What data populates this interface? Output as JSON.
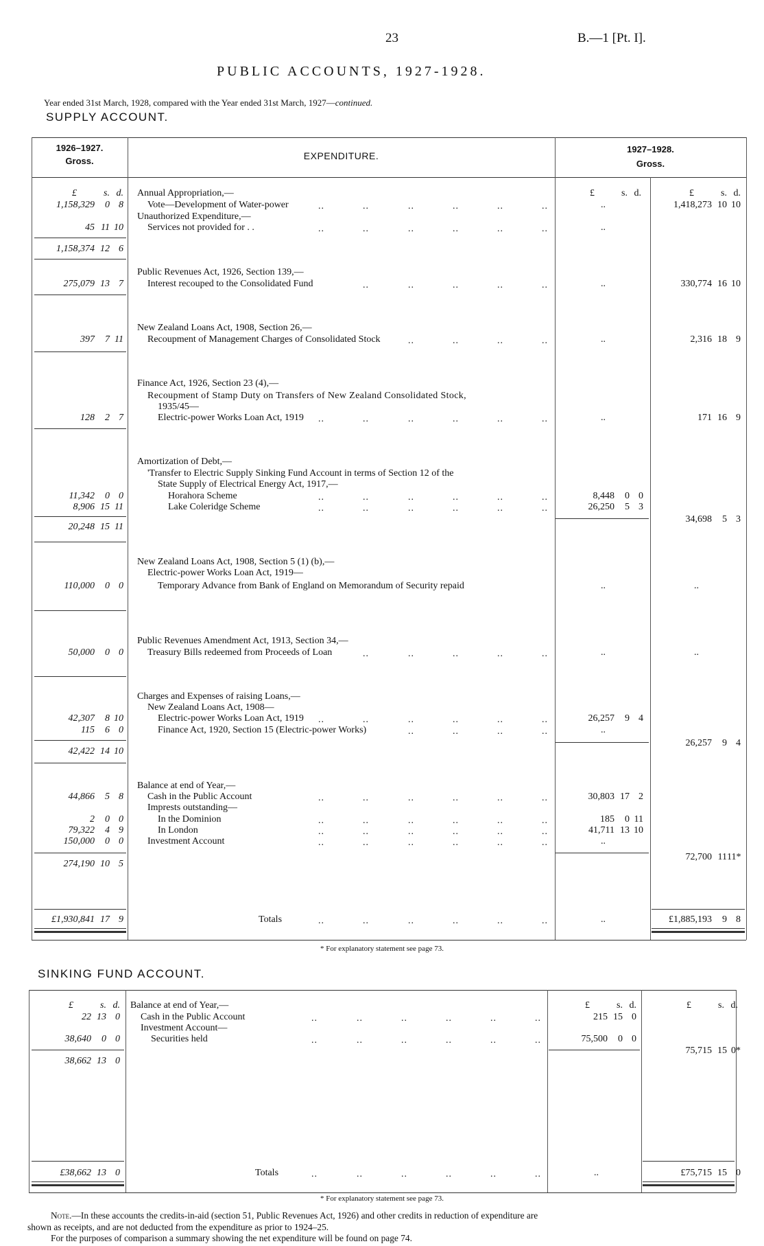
{
  "page_number": "23",
  "doc_ref": "B.—1 [Pt. I].",
  "title": "PUBLIC ACCOUNTS, 1927-1928.",
  "subtitle_main": "Year ended 31st March, 1928, compared with the Year ended 31st March, 1927—",
  "subtitle_italic": "continued.",
  "leader_glyph": "..",
  "supply": {
    "heading": "SUPPLY ACCOUNT.",
    "col1_header": "1926–1927.",
    "col1_sub": "Gross.",
    "col2_header": "EXPENDITURE.",
    "col3_header": "1927–1928.",
    "col3_sub": "Gross.",
    "units": [
      "£",
      "s.",
      "d."
    ],
    "rows": [
      {
        "text": "Annual Appropriation,—",
        "indent": 0
      },
      {
        "text": "Vote—Development of Water-power",
        "indent": 1,
        "c1": [
          "1,158,329",
          "0",
          "8"
        ],
        "c3": "..",
        "c4": [
          "1,418,273",
          "10",
          "10"
        ],
        "leader": true
      },
      {
        "text": "Unauthorized Expenditure,—",
        "indent": 0
      },
      {
        "text": "Services not provided for . .",
        "indent": 1,
        "c1": [
          "45",
          "11",
          "10"
        ],
        "c3": "..",
        "leader": true
      },
      {
        "text": "",
        "c1": [
          "1,158,374",
          "12",
          "6"
        ]
      },
      {
        "text": "Public Revenues Act, 1926, Section 139,—",
        "indent": 0
      },
      {
        "text": "Interest recouped to the Consolidated Fund",
        "indent": 1,
        "c1": [
          "275,079",
          "13",
          "7"
        ],
        "c3": "..",
        "c4": [
          "330,774",
          "16",
          "10"
        ],
        "leader": true
      },
      {
        "text": "New Zealand Loans Act, 1908, Section 26,—",
        "indent": 0
      },
      {
        "text": "Recoupment of Management Charges of Consolidated Stock",
        "indent": 1,
        "c1": [
          "397",
          "7",
          "11"
        ],
        "c3": "..",
        "c4": [
          "2,316",
          "18",
          "9"
        ],
        "leader": true
      },
      {
        "text": "Finance Act, 1926, Section 23 (4),—",
        "indent": 0
      },
      {
        "text": "Recoupment of Stamp Duty on Transfers of New Zealand Consolidated Stock,",
        "indent": 1
      },
      {
        "text": "1935/45—",
        "indent": 2
      },
      {
        "text": "Electric-power Works Loan Act, 1919",
        "indent": 2,
        "c1": [
          "128",
          "2",
          "7"
        ],
        "c3": "..",
        "c4": [
          "171",
          "16",
          "9"
        ],
        "leader": true
      },
      {
        "text": "Amortization of Debt,—",
        "indent": 0
      },
      {
        "text": "'Transfer to Electric Supply Sinking Fund Account in terms of Section 12 of the",
        "indent": 1
      },
      {
        "text": "State Supply of Electrical Energy Act, 1917,—",
        "indent": 2
      },
      {
        "text": "Horahora Scheme",
        "indent": 3,
        "c1": [
          "11,342",
          "0",
          "0"
        ],
        "c3n": [
          "8,448",
          "0",
          "0"
        ],
        "leader": true
      },
      {
        "text": "Lake Coleridge Scheme",
        "indent": 3,
        "c1": [
          "8,906",
          "15",
          "11"
        ],
        "c3n": [
          "26,250",
          "5",
          "3"
        ],
        "leader": true
      },
      {
        "text": "",
        "c4": [
          "34,698",
          "5",
          "3"
        ]
      },
      {
        "text": "",
        "c1": [
          "20,248",
          "15",
          "11"
        ]
      },
      {
        "text": "New Zealand Loans Act, 1908, Section 5 (1) (b),—",
        "indent": 0
      },
      {
        "text": "Electric-power Works Loan Act, 1919—",
        "indent": 1
      },
      {
        "text": "Temporary Advance from Bank of England on Memorandum of Security repaid",
        "indent": 2,
        "c1": [
          "110,000",
          "0",
          "0"
        ],
        "c3": "..",
        "c4d": ".."
      },
      {
        "text": "Public Revenues Amendment Act, 1913, Section 34,—",
        "indent": 0
      },
      {
        "text": "Treasury Bills redeemed from Proceeds of Loan",
        "indent": 1,
        "c1": [
          "50,000",
          "0",
          "0"
        ],
        "c3": "..",
        "c4d": "..",
        "leader": true
      },
      {
        "text": "Charges and Expenses of raising Loans,—",
        "indent": 0
      },
      {
        "text": "New Zealand Loans Act, 1908—",
        "indent": 1
      },
      {
        "text": "Electric-power Works Loan Act, 1919",
        "indent": 2,
        "c1": [
          "42,307",
          "8",
          "10"
        ],
        "c3n": [
          "26,257",
          "9",
          "4"
        ],
        "leader": true
      },
      {
        "text": "Finance Act, 1920, Section 15 (Electric-power Works)",
        "indent": 2,
        "c1": [
          "115",
          "6",
          "0"
        ],
        "c3": "..",
        "leader": true
      },
      {
        "text": "",
        "c4": [
          "26,257",
          "9",
          "4"
        ]
      },
      {
        "text": "",
        "c1": [
          "42,422",
          "14",
          "10"
        ]
      },
      {
        "text": "Balance at end of Year,—",
        "indent": 0
      },
      {
        "text": "Cash in the Public Account",
        "indent": 1,
        "c1": [
          "44,866",
          "5",
          "8"
        ],
        "c3n": [
          "30,803",
          "17",
          "2"
        ],
        "leader": true
      },
      {
        "text": "Imprests outstanding—",
        "indent": 1
      },
      {
        "text": "In the Dominion",
        "indent": 2,
        "c1": [
          "2",
          "0",
          "0"
        ],
        "c3n": [
          "185",
          "0",
          "11"
        ],
        "leader": true
      },
      {
        "text": "In London",
        "indent": 2,
        "c1": [
          "79,322",
          "4",
          "9"
        ],
        "c3n": [
          "41,711",
          "13",
          "10"
        ],
        "leader": true
      },
      {
        "text": "Investment Account",
        "indent": 1,
        "c1": [
          "150,000",
          "0",
          "0"
        ],
        "c3": "..",
        "leader": true
      },
      {
        "text": "",
        "c4": [
          "72,700",
          "11",
          "11*"
        ]
      },
      {
        "text": "",
        "c1": [
          "274,190",
          "10",
          "5"
        ]
      }
    ],
    "totals": {
      "label": "Totals",
      "c1": [
        "£1,930,841",
        "17",
        "9"
      ],
      "c3": "..",
      "c4": [
        "£1,885,193",
        "9",
        "8"
      ]
    },
    "footnote": "* For explanatory statement see page 73."
  },
  "sinking": {
    "heading": "SINKING FUND ACCOUNT.",
    "units": [
      "£",
      "s.",
      "d."
    ],
    "rows": [
      {
        "text": "Balance at end of Year,—",
        "indent": 0
      },
      {
        "text": "Cash in the Public Account",
        "indent": 1,
        "c1": [
          "22",
          "13",
          "0"
        ],
        "c3n": [
          "215",
          "15",
          "0"
        ],
        "leader": true
      },
      {
        "text": "Investment Account—",
        "indent": 1
      },
      {
        "text": "Securities held",
        "indent": 2,
        "c1": [
          "38,640",
          "0",
          "0"
        ],
        "c3n": [
          "75,500",
          "0",
          "0"
        ],
        "leader": true
      },
      {
        "text": "",
        "c4": [
          "75,715",
          "15",
          "0*"
        ]
      },
      {
        "text": "",
        "c1": [
          "38,662",
          "13",
          "0"
        ]
      }
    ],
    "totals": {
      "label": "Totals",
      "c1": [
        "£38,662",
        "13",
        "0"
      ],
      "c3": "..",
      "c4": [
        "£75,715",
        "15",
        "0"
      ]
    },
    "footnote": "* For explanatory statement see page 73."
  },
  "note": {
    "lead": "Note.",
    "line1": "—In these accounts the credits-in-aid (section 51, Public Revenues Act, 1926) and other credits in reduction of expenditure are",
    "line2": "shown as receipts, and are not deducted from the expenditure as prior to 1924–25.",
    "line3": "For the purposes of comparison a summary showing the net expenditure will be found on page 74."
  }
}
